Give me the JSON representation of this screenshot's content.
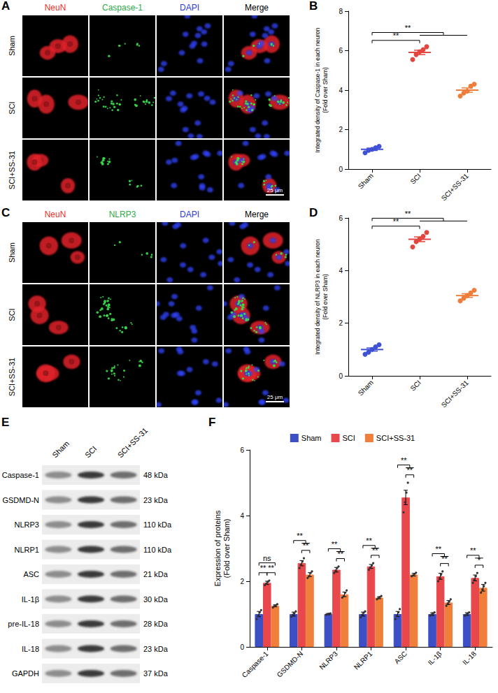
{
  "figure": {
    "image_panels": [
      {
        "panel": "A",
        "channels": [
          {
            "name": "NeuN",
            "color": "#e8302a"
          },
          {
            "name": "Caspase-1",
            "color": "#2eaa4a"
          },
          {
            "name": "DAPI",
            "color": "#2a36d8"
          },
          {
            "name": "Merge",
            "color": "#000000"
          }
        ],
        "groups": [
          "Sham",
          "SCI",
          "SCI+SS-31"
        ],
        "scale_bar": "25 μm"
      },
      {
        "panel": "C",
        "channels": [
          {
            "name": "NeuN",
            "color": "#e8302a"
          },
          {
            "name": "NLRP3",
            "color": "#2eaa4a"
          },
          {
            "name": "DAPI",
            "color": "#2a36d8"
          },
          {
            "name": "Merge",
            "color": "#000000"
          }
        ],
        "groups": [
          "Sham",
          "SCI",
          "SCI+SS-31"
        ],
        "scale_bar": "25 μm"
      }
    ],
    "blot": {
      "panel": "E",
      "lanes": [
        "Sham",
        "SCI",
        "SCI+SS-31"
      ],
      "proteins": [
        {
          "name": "Caspase-1",
          "size": "48 kDa"
        },
        {
          "name": "GSDMD-N",
          "size": "23 kDa"
        },
        {
          "name": "NLRP3",
          "size": "110 kDa"
        },
        {
          "name": "NLRP1",
          "size": "110 kDa"
        },
        {
          "name": "ASC",
          "size": "21 kDa"
        },
        {
          "name": "IL-1β",
          "size": "30 kDa"
        },
        {
          "name": "pre-IL-18",
          "size": "28 kDa"
        },
        {
          "name": "IL-18",
          "size": "23 kDa"
        },
        {
          "name": "GAPDH",
          "size": "37 kDa"
        }
      ]
    }
  },
  "chart_data": [
    {
      "panel": "B",
      "type": "scatter",
      "categories": [
        "Sham",
        "SCI",
        "SCI+SS-31"
      ],
      "colors": [
        "#3f51d4",
        "#e2463f",
        "#ee7d3a"
      ],
      "y_label": "Integrated density of Caspase-1 in each neuron\n(Fold over Sham)",
      "ylim": [
        0,
        8
      ],
      "yticks": [
        0,
        2,
        4,
        6,
        8
      ],
      "values": [
        1.0,
        5.91,
        4.0
      ],
      "errors": [
        0.06,
        0.11,
        0.11
      ],
      "points": [
        [
          0.82,
          0.95,
          1.0,
          1.08,
          1.15
        ],
        [
          5.55,
          5.8,
          5.95,
          6.05,
          6.2
        ],
        [
          3.7,
          3.85,
          3.95,
          4.2,
          4.3
        ]
      ],
      "comparisons": [
        {
          "from": "Sham",
          "to": [
            "SCI"
          ],
          "label": "**"
        },
        {
          "from": "Sham",
          "to": [
            "SCI",
            "SCI+SS-31"
          ],
          "label": "**"
        }
      ]
    },
    {
      "panel": "D",
      "type": "scatter",
      "categories": [
        "Sham",
        "SCI",
        "SCI+SS-31"
      ],
      "colors": [
        "#3f51d4",
        "#e2463f",
        "#ee7d3a"
      ],
      "y_label": "Integrated density of NLRP3 in each neuron\n(Fold over Sham)",
      "ylim": [
        0,
        6
      ],
      "yticks": [
        0,
        2,
        4,
        6
      ],
      "values": [
        1.0,
        5.19,
        3.05
      ],
      "errors": [
        0.06,
        0.09,
        0.07
      ],
      "points": [
        [
          0.82,
          0.9,
          1.0,
          1.1,
          1.18
        ],
        [
          4.9,
          5.1,
          5.2,
          5.3,
          5.45
        ],
        [
          2.85,
          2.95,
          3.05,
          3.15,
          3.25
        ]
      ],
      "comparisons": [
        {
          "from": "Sham",
          "to": [
            "SCI"
          ],
          "label": "**"
        },
        {
          "from": "Sham",
          "to": [
            "SCI",
            "SCI+SS-31"
          ],
          "label": "**"
        }
      ]
    },
    {
      "panel": "F",
      "type": "bar",
      "categories": [
        "Caspase-1",
        "GSDMD-N",
        "NLRP3",
        "NLRP1",
        "ASC",
        "IL-1β",
        "IL-18"
      ],
      "y_label": "Expression of proteins\n(Fold over Sham)",
      "ylim": [
        0,
        6
      ],
      "yticks": [
        0,
        2,
        4,
        6
      ],
      "legend": "top",
      "series": [
        {
          "name": "Sham",
          "color": "#3d4fc4",
          "values": [
            1.0,
            1.0,
            1.0,
            1.0,
            1.0,
            1.0,
            1.0
          ],
          "errors": [
            0.08,
            0.06,
            0.02,
            0.06,
            0.08,
            0.04,
            0.04
          ],
          "points": [
            [
              0.85,
              0.95,
              1.05,
              1.12
            ],
            [
              0.92,
              0.98,
              1.02,
              1.08
            ],
            [
              0.98,
              0.99,
              1.01,
              1.02
            ],
            [
              0.9,
              0.98,
              1.04,
              1.08
            ],
            [
              0.85,
              0.95,
              1.05,
              1.15
            ],
            [
              0.95,
              0.98,
              1.02,
              1.05
            ],
            [
              0.95,
              0.98,
              1.02,
              1.05
            ]
          ]
        },
        {
          "name": "SCI",
          "color": "#e8474c",
          "values": [
            1.95,
            2.55,
            2.35,
            2.45,
            4.55,
            2.15,
            2.1
          ],
          "errors": [
            0.05,
            0.08,
            0.07,
            0.06,
            0.22,
            0.09,
            0.09
          ],
          "points": [
            [
              1.88,
              1.93,
              1.98,
              2.02
            ],
            [
              2.4,
              2.5,
              2.6,
              2.7
            ],
            [
              2.25,
              2.32,
              2.4,
              2.45
            ],
            [
              2.35,
              2.42,
              2.48,
              2.55
            ],
            [
              4.1,
              4.4,
              4.7,
              5.0
            ],
            [
              2.0,
              2.1,
              2.2,
              2.3
            ],
            [
              1.95,
              2.05,
              2.15,
              2.25
            ]
          ]
        },
        {
          "name": "SCI+SS-31",
          "color": "#f07f3c",
          "values": [
            1.25,
            2.2,
            1.6,
            1.5,
            2.2,
            1.35,
            1.8
          ],
          "errors": [
            0.03,
            0.06,
            0.07,
            0.03,
            0.04,
            0.06,
            0.1
          ],
          "points": [
            [
              1.2,
              1.24,
              1.27,
              1.3
            ],
            [
              2.1,
              2.15,
              2.25,
              2.3
            ],
            [
              1.5,
              1.55,
              1.65,
              1.72
            ],
            [
              1.45,
              1.48,
              1.52,
              1.55
            ],
            [
              2.15,
              2.18,
              2.22,
              2.26
            ],
            [
              1.25,
              1.32,
              1.38,
              1.45
            ],
            [
              1.65,
              1.75,
              1.85,
              1.95
            ]
          ]
        }
      ],
      "comparisons": [
        {
          "category": "Caspase-1",
          "from": "Sham",
          "to": [
            "SCI"
          ],
          "label": "**"
        },
        {
          "category": "Caspase-1",
          "from": "SCI",
          "to": [
            "SCI+SS-31"
          ],
          "label": "**"
        },
        {
          "category": "Caspase-1",
          "from": "Sham",
          "to": [
            "SCI+SS-31"
          ],
          "label": "ns"
        },
        {
          "category": "GSDMD-N",
          "from": "SCI",
          "to": [
            "SCI+SS-31"
          ],
          "label": "**"
        },
        {
          "category": "GSDMD-N",
          "from": "Sham",
          "to": [
            "SCI",
            "SCI+SS-31"
          ],
          "label": "**"
        },
        {
          "category": "NLRP3",
          "from": "SCI",
          "to": [
            "SCI+SS-31"
          ],
          "label": "**"
        },
        {
          "category": "NLRP3",
          "from": "Sham",
          "to": [
            "SCI",
            "SCI+SS-31"
          ],
          "label": "**"
        },
        {
          "category": "NLRP1",
          "from": "SCI",
          "to": [
            "SCI+SS-31"
          ],
          "label": "**"
        },
        {
          "category": "NLRP1",
          "from": "Sham",
          "to": [
            "SCI",
            "SCI+SS-31"
          ],
          "label": "**"
        },
        {
          "category": "ASC",
          "from": "SCI",
          "to": [
            "SCI+SS-31"
          ],
          "label": "**"
        },
        {
          "category": "ASC",
          "from": "Sham",
          "to": [
            "SCI",
            "SCI+SS-31"
          ],
          "label": "**"
        },
        {
          "category": "IL-1β",
          "from": "SCI",
          "to": [
            "SCI+SS-31"
          ],
          "label": "**"
        },
        {
          "category": "IL-1β",
          "from": "Sham",
          "to": [
            "SCI",
            "SCI+SS-31"
          ],
          "label": "**"
        },
        {
          "category": "IL-18",
          "from": "SCI",
          "to": [
            "SCI+SS-31"
          ],
          "label": "*"
        },
        {
          "category": "IL-18",
          "from": "Sham",
          "to": [
            "SCI",
            "SCI+SS-31"
          ],
          "label": "**"
        }
      ]
    }
  ]
}
